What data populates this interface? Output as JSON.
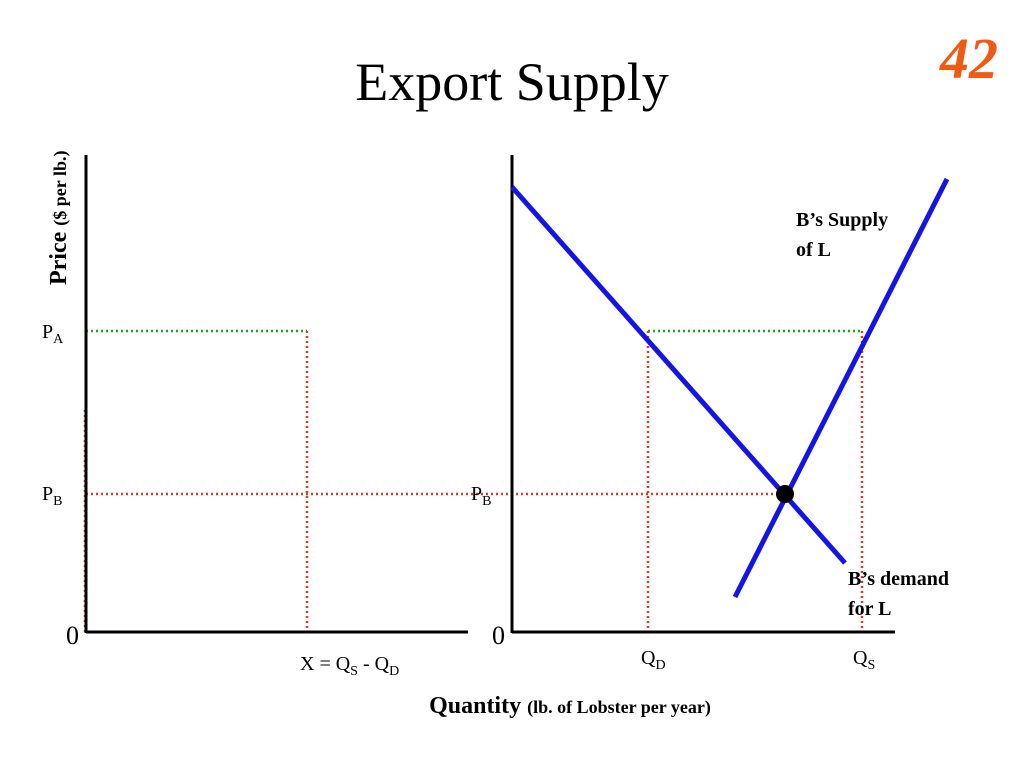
{
  "header": {
    "title": "Export Supply",
    "slide_number": "42"
  },
  "left_panel": {
    "y_axis_label": {
      "main": "Price",
      "note": "($ per lb.)"
    },
    "price_a": {
      "main": "P",
      "sub": "A"
    },
    "price_b": {
      "main": "P",
      "sub": "B"
    },
    "origin": "0",
    "export_label": {
      "part1": "X = Q",
      "sub1": "S",
      "part2": " - Q",
      "sub2": "D"
    }
  },
  "right_panel": {
    "price_b": {
      "main": "P",
      "sub": "B"
    },
    "origin": "0",
    "quantity_demanded": {
      "main": "Q",
      "sub": "D"
    },
    "quantity_supplied": {
      "main": "Q",
      "sub": "S"
    },
    "supply_label": [
      "B’s Supply",
      "of L"
    ],
    "demand_label": [
      "B’s demand",
      "for L"
    ]
  },
  "x_axis_label": {
    "main": "Quantity",
    "note": "(lb. of Lobster per year)"
  }
}
